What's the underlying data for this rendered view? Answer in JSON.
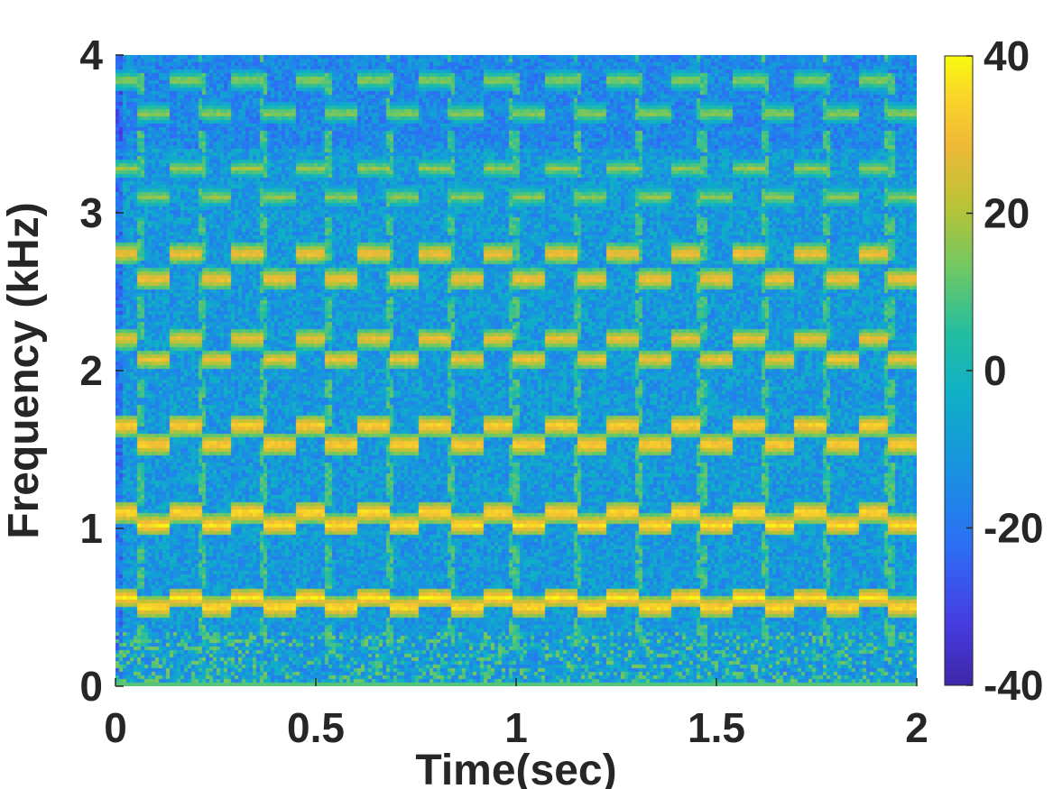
{
  "chart_data": {
    "type": "heatmap",
    "title": "",
    "xlabel": "Time(sec)",
    "ylabel": "Frequency (kHz)",
    "xlim": [
      0,
      2
    ],
    "ylim": [
      0,
      4
    ],
    "xticks": [
      0,
      0.5,
      1,
      1.5,
      2
    ],
    "xtick_labels": [
      "0",
      "0.5",
      "1",
      "1.5",
      "2"
    ],
    "yticks": [
      0,
      1,
      2,
      3,
      4
    ],
    "ytick_labels": [
      "0",
      "1",
      "2",
      "3",
      "4"
    ],
    "colorbar": {
      "range": [
        -40,
        40
      ],
      "ticks": [
        -40,
        -20,
        0,
        20,
        40
      ],
      "tick_labels": [
        "-40",
        "-20",
        "0",
        "20",
        "40"
      ],
      "colormap": "parula"
    },
    "background_level": -10,
    "harmonics": [
      {
        "name": "",
        "freq_low": 0.5,
        "freq_high": 0.56,
        "level": 38
      },
      {
        "name": "",
        "freq_low": 1.02,
        "freq_high": 1.1,
        "level": 38
      },
      {
        "name": "",
        "freq_low": 1.53,
        "freq_high": 1.65,
        "level": 36
      },
      {
        "name": "",
        "freq_low": 2.07,
        "freq_high": 2.2,
        "level": 30
      },
      {
        "name": "",
        "freq_low": 2.58,
        "freq_high": 2.74,
        "level": 32
      },
      {
        "name": "",
        "freq_low": 3.1,
        "freq_high": 3.28,
        "level": 18
      },
      {
        "name": "",
        "freq_low": 3.63,
        "freq_high": 3.84,
        "level": 18
      }
    ],
    "modulation_period_sec": 0.156,
    "grid": false
  },
  "colors": {
    "parula_low": "#3e26a8",
    "parula_mid": "#12b2a5",
    "parula_high": "#f9fb0e"
  }
}
